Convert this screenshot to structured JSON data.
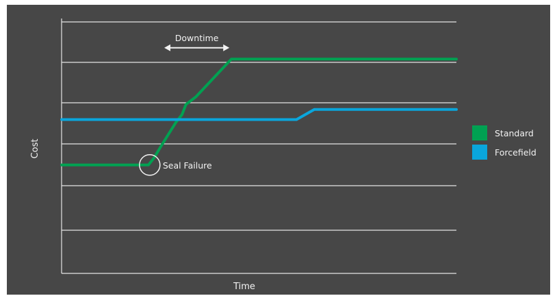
{
  "chart_data": {
    "type": "line",
    "title": "",
    "xlabel": "Time",
    "ylabel": "Cost",
    "x_ticks": [],
    "y_ticks": [],
    "xlim": [
      0,
      100
    ],
    "ylim": [
      0,
      100
    ],
    "grid": true,
    "legend_position": "right",
    "series": [
      {
        "name": "Standard",
        "color": "#00a152",
        "points": [
          [
            0,
            43
          ],
          [
            22,
            43
          ],
          [
            23.5,
            46
          ],
          [
            25,
            50
          ],
          [
            27,
            55
          ],
          [
            29,
            60
          ],
          [
            30.5,
            63
          ],
          [
            31.5,
            67
          ],
          [
            34,
            70
          ],
          [
            37,
            75
          ],
          [
            40,
            80
          ],
          [
            43,
            85
          ],
          [
            100,
            85
          ]
        ]
      },
      {
        "name": "Forcefield",
        "color": "#0aa6dc",
        "points": [
          [
            0,
            61
          ],
          [
            59.5,
            61
          ],
          [
            64,
            65
          ],
          [
            100,
            65
          ]
        ]
      }
    ],
    "annotations": [
      {
        "text": "Downtime",
        "x_start": 26,
        "x_end": 42.5,
        "y": 90
      },
      {
        "text": "Seal Failure",
        "x": 22.5,
        "y": 43
      }
    ]
  },
  "colors": {
    "background": "#474747",
    "grid": "#e6e6e6",
    "text": "#f2f2f2"
  }
}
